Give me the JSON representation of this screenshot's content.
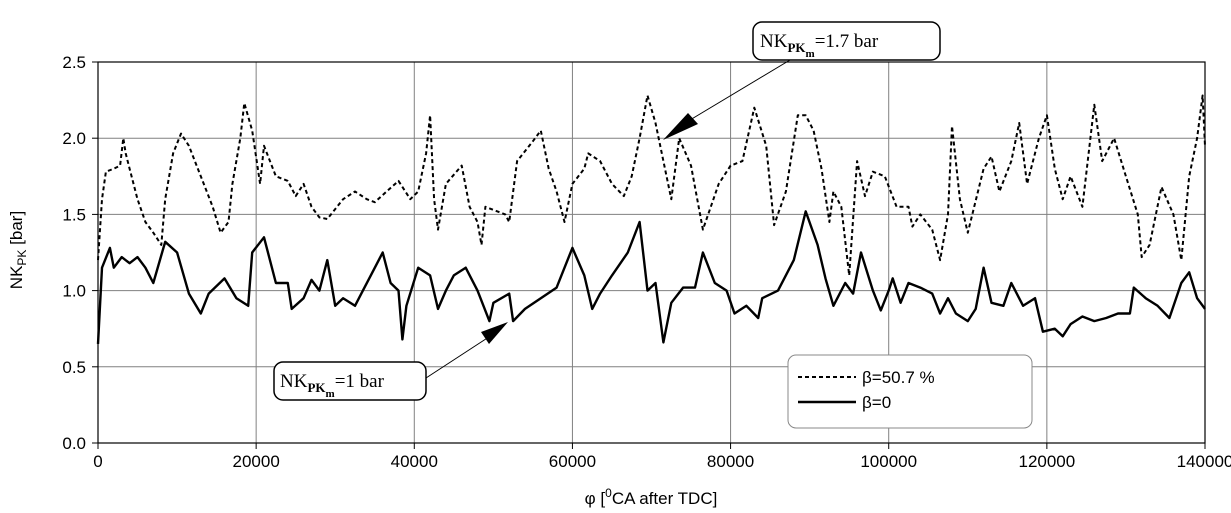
{
  "chart_data": {
    "type": "line",
    "y_label": {
      "main": "NK",
      "sub": "PK",
      "rest": " [bar]"
    },
    "x_label": {
      "main": "φ [",
      "sup": "0",
      "rest": "CA after TDC]"
    },
    "annotations": [
      {
        "main": "NK",
        "sub": "PK",
        "subsub": "m",
        "rest": "=1.7 bar"
      },
      {
        "main": "NK",
        "sub": "PK",
        "subsub": "m",
        "rest": "=1 bar"
      }
    ],
    "xlim": [
      0,
      140000
    ],
    "ylim": [
      0,
      2.5
    ],
    "xticks": [
      0,
      20000,
      40000,
      60000,
      80000,
      100000,
      120000,
      140000
    ],
    "yticks": [
      {
        "value": 0,
        "label": "0.0"
      },
      0.5,
      {
        "value": 1,
        "label": "1.0"
      },
      1.5,
      {
        "value": 2,
        "label": "2.0"
      },
      2.5
    ],
    "grid": true,
    "legend": "lower right",
    "series": [
      {
        "name": "β=50.7 %",
        "color": "#000000",
        "style": "dashed",
        "x": [
          0,
          500,
          1000,
          2000,
          2800,
          3200,
          3500,
          4000,
          5000,
          6000,
          7000,
          8000,
          8500,
          9500,
          10500,
          11500,
          13000,
          14500,
          15500,
          16500,
          17000,
          18000,
          18500,
          19500,
          20500,
          21000,
          22500,
          24000,
          25000,
          26000,
          27000,
          28000,
          29000,
          31000,
          32500,
          34000,
          35000,
          36500,
          38000,
          39500,
          40500,
          41500,
          42000,
          42500,
          43000,
          44000,
          46000,
          47000,
          48000,
          48500,
          49000,
          51500,
          52000,
          53000,
          55000,
          56000,
          57000,
          58000,
          59000,
          60000,
          61500,
          62000,
          63500,
          65000,
          66500,
          67500,
          68500,
          69500,
          70500,
          71500,
          72500,
          73500,
          75000,
          76500,
          77500,
          78500,
          80000,
          81500,
          83000,
          84500,
          85500,
          87000,
          88500,
          89500,
          90500,
          91500,
          92500,
          93000,
          94000,
          95000,
          96000,
          97000,
          98000,
          99500,
          101000,
          102500,
          103000,
          104000,
          105500,
          106500,
          107500,
          108000,
          109000,
          110000,
          112000,
          113000,
          114000,
          115500,
          116500,
          117500,
          119000,
          120000,
          121000,
          122000,
          123000,
          124500,
          126000,
          127000,
          128500,
          130000,
          131500,
          132000,
          133000,
          134500,
          136000,
          137000,
          138000,
          139000,
          139700,
          140000
        ],
        "values": [
          1.2,
          1.6,
          1.78,
          1.8,
          1.82,
          2.0,
          1.9,
          1.8,
          1.6,
          1.45,
          1.38,
          1.3,
          1.6,
          1.9,
          2.03,
          1.95,
          1.75,
          1.55,
          1.38,
          1.45,
          1.7,
          2.0,
          2.23,
          2.05,
          1.7,
          1.95,
          1.75,
          1.72,
          1.62,
          1.7,
          1.55,
          1.48,
          1.47,
          1.6,
          1.65,
          1.6,
          1.58,
          1.65,
          1.72,
          1.6,
          1.65,
          1.9,
          2.15,
          1.6,
          1.4,
          1.7,
          1.82,
          1.55,
          1.45,
          1.3,
          1.55,
          1.5,
          1.45,
          1.85,
          1.98,
          2.05,
          1.8,
          1.65,
          1.45,
          1.7,
          1.8,
          1.9,
          1.85,
          1.7,
          1.62,
          1.75,
          2.0,
          2.28,
          2.1,
          1.85,
          1.6,
          2.0,
          1.82,
          1.4,
          1.55,
          1.7,
          1.82,
          1.85,
          2.2,
          1.95,
          1.43,
          1.65,
          2.15,
          2.15,
          2.05,
          1.8,
          1.45,
          1.65,
          1.55,
          1.1,
          1.85,
          1.62,
          1.78,
          1.75,
          1.55,
          1.55,
          1.42,
          1.5,
          1.4,
          1.2,
          1.5,
          2.08,
          1.6,
          1.38,
          1.8,
          1.88,
          1.65,
          1.85,
          2.1,
          1.7,
          2.0,
          2.15,
          1.8,
          1.6,
          1.75,
          1.55,
          2.22,
          1.85,
          2.0,
          1.75,
          1.5,
          1.22,
          1.3,
          1.68,
          1.5,
          1.2,
          1.75,
          2.0,
          2.28,
          1.95
        ]
      },
      {
        "name": "β=0",
        "color": "#000000",
        "style": "solid",
        "x": [
          0,
          500,
          1500,
          2000,
          3000,
          4000,
          5000,
          6000,
          7000,
          8500,
          10000,
          11500,
          13000,
          14000,
          16000,
          17500,
          19000,
          19500,
          21000,
          22500,
          24000,
          24500,
          26000,
          27000,
          28000,
          29000,
          30000,
          31000,
          32500,
          33500,
          34500,
          36000,
          37000,
          38000,
          38500,
          39000,
          40500,
          42000,
          43000,
          44000,
          45000,
          46500,
          48000,
          49500,
          50000,
          52000,
          52500,
          54000,
          56000,
          58000,
          60000,
          61500,
          62500,
          63500,
          65000,
          67000,
          68500,
          69500,
          70500,
          71500,
          72500,
          74000,
          75500,
          76500,
          78000,
          79500,
          80500,
          82000,
          83500,
          84000,
          86000,
          88000,
          89500,
          91000,
          92000,
          93000,
          94500,
          95500,
          96500,
          98000,
          99000,
          100000,
          100500,
          101500,
          102500,
          104000,
          105500,
          106500,
          107500,
          108500,
          110000,
          111000,
          112000,
          113000,
          114500,
          115500,
          117000,
          118500,
          119500,
          121000,
          122000,
          123000,
          124500,
          126000,
          127500,
          129000,
          130500,
          131000,
          132500,
          134000,
          135500,
          137000,
          138000,
          139000,
          140000
        ],
        "values": [
          0.65,
          1.15,
          1.28,
          1.15,
          1.22,
          1.18,
          1.22,
          1.15,
          1.05,
          1.32,
          1.25,
          0.98,
          0.85,
          0.98,
          1.08,
          0.95,
          0.9,
          1.25,
          1.35,
          1.05,
          1.05,
          0.88,
          0.95,
          1.07,
          1.0,
          1.2,
          0.9,
          0.95,
          0.9,
          1.0,
          1.1,
          1.25,
          1.05,
          1.0,
          0.68,
          0.9,
          1.15,
          1.1,
          0.88,
          1.0,
          1.1,
          1.15,
          1.0,
          0.8,
          0.92,
          0.98,
          0.8,
          0.88,
          0.95,
          1.02,
          1.28,
          1.1,
          0.88,
          0.98,
          1.1,
          1.25,
          1.45,
          1.0,
          1.05,
          0.66,
          0.92,
          1.02,
          1.02,
          1.25,
          1.05,
          1.0,
          0.85,
          0.9,
          0.82,
          0.95,
          1.0,
          1.2,
          1.52,
          1.3,
          1.08,
          0.9,
          1.05,
          0.98,
          1.25,
          1.0,
          0.87,
          1.0,
          1.08,
          0.92,
          1.05,
          1.02,
          0.98,
          0.85,
          0.95,
          0.85,
          0.8,
          0.88,
          1.15,
          0.92,
          0.9,
          1.05,
          0.9,
          0.95,
          0.73,
          0.75,
          0.7,
          0.78,
          0.83,
          0.8,
          0.82,
          0.85,
          0.85,
          1.02,
          0.95,
          0.9,
          0.82,
          1.05,
          1.12,
          0.95,
          0.88
        ]
      }
    ]
  }
}
